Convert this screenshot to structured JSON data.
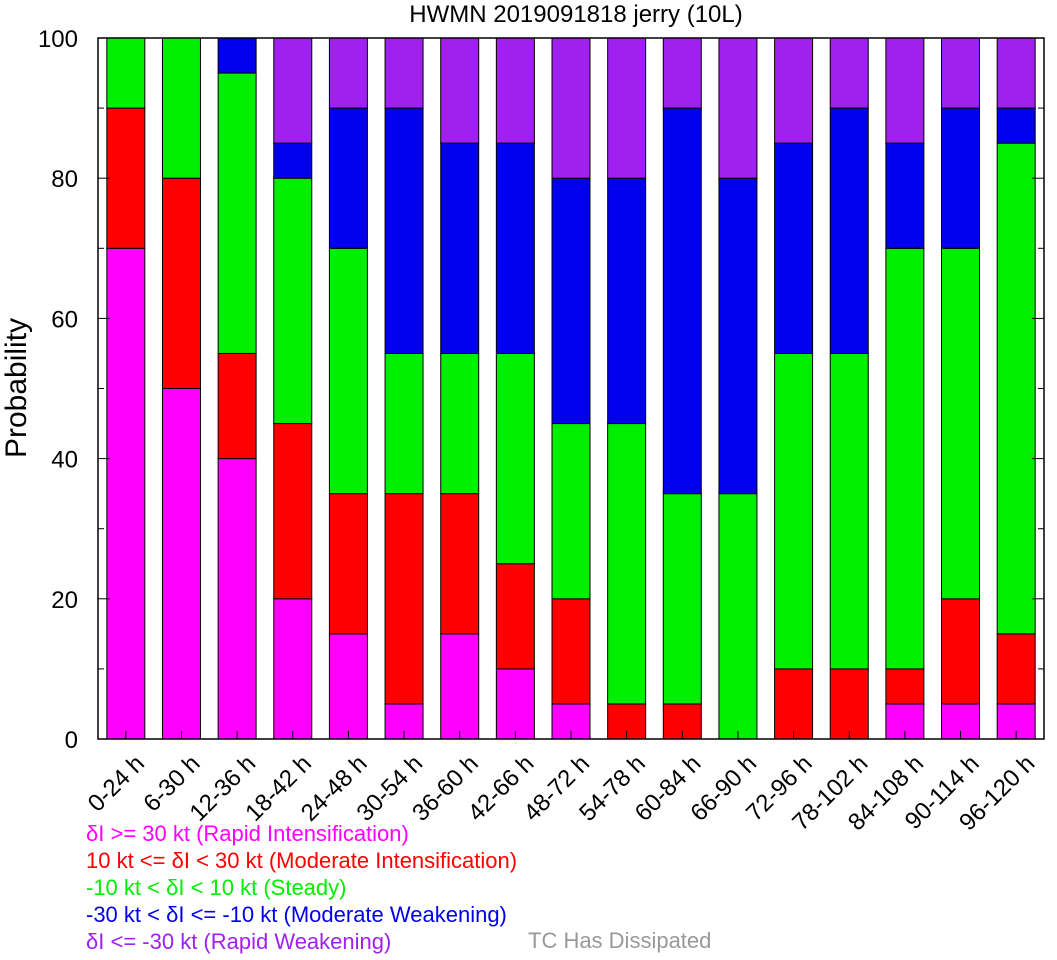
{
  "chart_data": {
    "type": "bar",
    "stacked": true,
    "title": "HWMN 2019091818 jerry (10L)",
    "xlabel": "",
    "ylabel": "Probability",
    "ylim": [
      0,
      100
    ],
    "yticks": [
      0,
      20,
      40,
      60,
      80,
      100
    ],
    "grid": false,
    "categories": [
      "0-24 h",
      "6-30 h",
      "12-36 h",
      "18-42 h",
      "24-48 h",
      "30-54 h",
      "36-60 h",
      "42-66 h",
      "48-72 h",
      "54-78 h",
      "60-84 h",
      "66-90 h",
      "72-96 h",
      "78-102 h",
      "84-108 h",
      "90-114 h",
      "96-120 h"
    ],
    "series": [
      {
        "color": "#ff00ff",
        "values": [
          70,
          50,
          40,
          20,
          15,
          5,
          15,
          10,
          5,
          0,
          0,
          0,
          0,
          0,
          5,
          5,
          5
        ]
      },
      {
        "color": "#ff0000",
        "values": [
          20,
          30,
          15,
          25,
          20,
          30,
          20,
          15,
          15,
          5,
          5,
          0,
          10,
          10,
          5,
          15,
          10
        ]
      },
      {
        "color": "#00ee00",
        "values": [
          10,
          20,
          40,
          35,
          35,
          20,
          20,
          30,
          25,
          40,
          30,
          35,
          45,
          45,
          60,
          50,
          70
        ]
      },
      {
        "color": "#0000ee",
        "values": [
          0,
          0,
          5,
          5,
          20,
          35,
          30,
          30,
          35,
          35,
          55,
          45,
          30,
          35,
          15,
          20,
          5
        ]
      },
      {
        "color": "#a020f0",
        "values": [
          0,
          0,
          0,
          15,
          10,
          10,
          15,
          15,
          20,
          20,
          10,
          20,
          15,
          10,
          15,
          10,
          10
        ]
      }
    ]
  },
  "legend": {
    "items": [
      {
        "text": "δI >= 30 kt (Rapid Intensification)",
        "color": "#ff00ff"
      },
      {
        "text": "10 kt <= δI < 30 kt (Moderate Intensification)",
        "color": "#ff0000"
      },
      {
        "text": "-10 kt < δI < 10 kt (Steady)",
        "color": "#00ee00"
      },
      {
        "text": "-30 kt < δI <= -10 kt (Moderate Weakening)",
        "color": "#0000ee"
      },
      {
        "text": "δI <= -30 kt (Rapid Weakening)",
        "color": "#a020f0"
      }
    ],
    "dissipated": {
      "text": "TC Has Dissipated",
      "color": "#999999"
    }
  }
}
